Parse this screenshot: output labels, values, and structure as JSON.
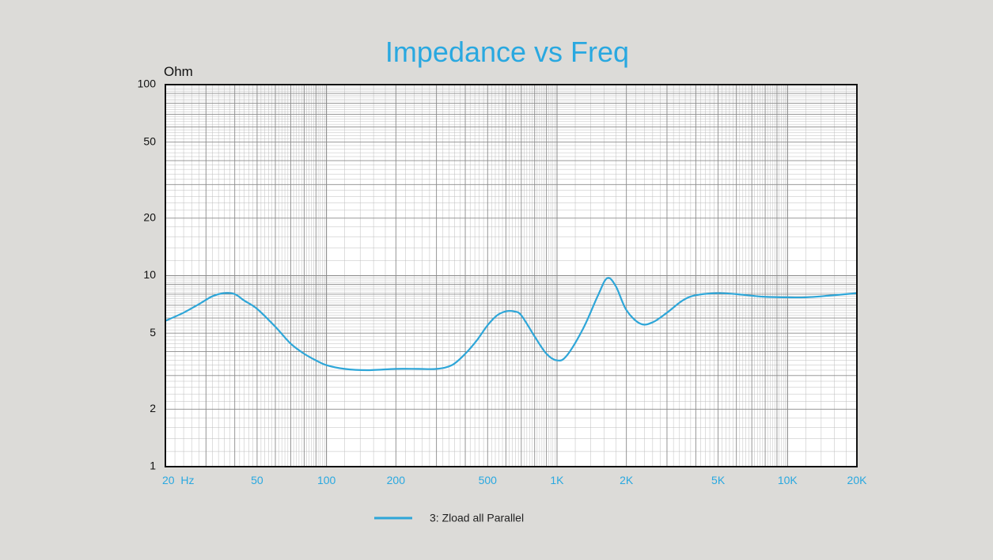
{
  "colors": {
    "background": "#dcdbd8",
    "plot_background": "#ffffff",
    "accent": "#29a8e0",
    "curve": "#2ea6d8",
    "grid_major": "#8a8a8a",
    "grid_minor": "#bdbdbd",
    "frame": "#111111",
    "text": "#111111"
  },
  "chart_data": {
    "type": "line",
    "title": "Impedance vs Freq",
    "ylabel": "Ohm",
    "xlabel": "",
    "x_scale": "log",
    "y_scale": "log",
    "xlim": [
      20,
      20000
    ],
    "ylim": [
      1,
      100
    ],
    "grid": true,
    "legend_position": "bottom-center",
    "x_ticks": [
      {
        "value": 20,
        "label": "20  Hz"
      },
      {
        "value": 50,
        "label": "50"
      },
      {
        "value": 100,
        "label": "100"
      },
      {
        "value": 200,
        "label": "200"
      },
      {
        "value": 500,
        "label": "500"
      },
      {
        "value": 1000,
        "label": "1K"
      },
      {
        "value": 2000,
        "label": "2K"
      },
      {
        "value": 5000,
        "label": "5K"
      },
      {
        "value": 10000,
        "label": "10K"
      },
      {
        "value": 20000,
        "label": "20K"
      }
    ],
    "y_ticks": [
      {
        "value": 100,
        "label": "100"
      },
      {
        "value": 50,
        "label": "50"
      },
      {
        "value": 20,
        "label": "20"
      },
      {
        "value": 10,
        "label": "10"
      },
      {
        "value": 5,
        "label": "5"
      },
      {
        "value": 2,
        "label": "2"
      },
      {
        "value": 1,
        "label": "1"
      }
    ],
    "series": [
      {
        "name": "3: Zload all Parallel",
        "points": [
          [
            20,
            5.8
          ],
          [
            24,
            6.4
          ],
          [
            28,
            7.1
          ],
          [
            32,
            7.8
          ],
          [
            36,
            8.1
          ],
          [
            40,
            8.0
          ],
          [
            44,
            7.4
          ],
          [
            50,
            6.7
          ],
          [
            60,
            5.4
          ],
          [
            70,
            4.4
          ],
          [
            80,
            3.9
          ],
          [
            90,
            3.6
          ],
          [
            100,
            3.4
          ],
          [
            120,
            3.25
          ],
          [
            150,
            3.2
          ],
          [
            200,
            3.25
          ],
          [
            250,
            3.25
          ],
          [
            300,
            3.25
          ],
          [
            350,
            3.4
          ],
          [
            400,
            3.9
          ],
          [
            450,
            4.6
          ],
          [
            500,
            5.5
          ],
          [
            550,
            6.2
          ],
          [
            600,
            6.5
          ],
          [
            650,
            6.5
          ],
          [
            700,
            6.2
          ],
          [
            800,
            4.8
          ],
          [
            900,
            3.9
          ],
          [
            1000,
            3.6
          ],
          [
            1100,
            3.8
          ],
          [
            1300,
            5.3
          ],
          [
            1500,
            7.8
          ],
          [
            1650,
            9.7
          ],
          [
            1800,
            8.8
          ],
          [
            2000,
            6.6
          ],
          [
            2300,
            5.6
          ],
          [
            2600,
            5.7
          ],
          [
            3000,
            6.4
          ],
          [
            3500,
            7.4
          ],
          [
            4000,
            7.9
          ],
          [
            5000,
            8.1
          ],
          [
            6000,
            8.0
          ],
          [
            7000,
            7.85
          ],
          [
            8000,
            7.75
          ],
          [
            10000,
            7.7
          ],
          [
            12000,
            7.7
          ],
          [
            15000,
            7.85
          ],
          [
            20000,
            8.1
          ]
        ]
      }
    ]
  }
}
